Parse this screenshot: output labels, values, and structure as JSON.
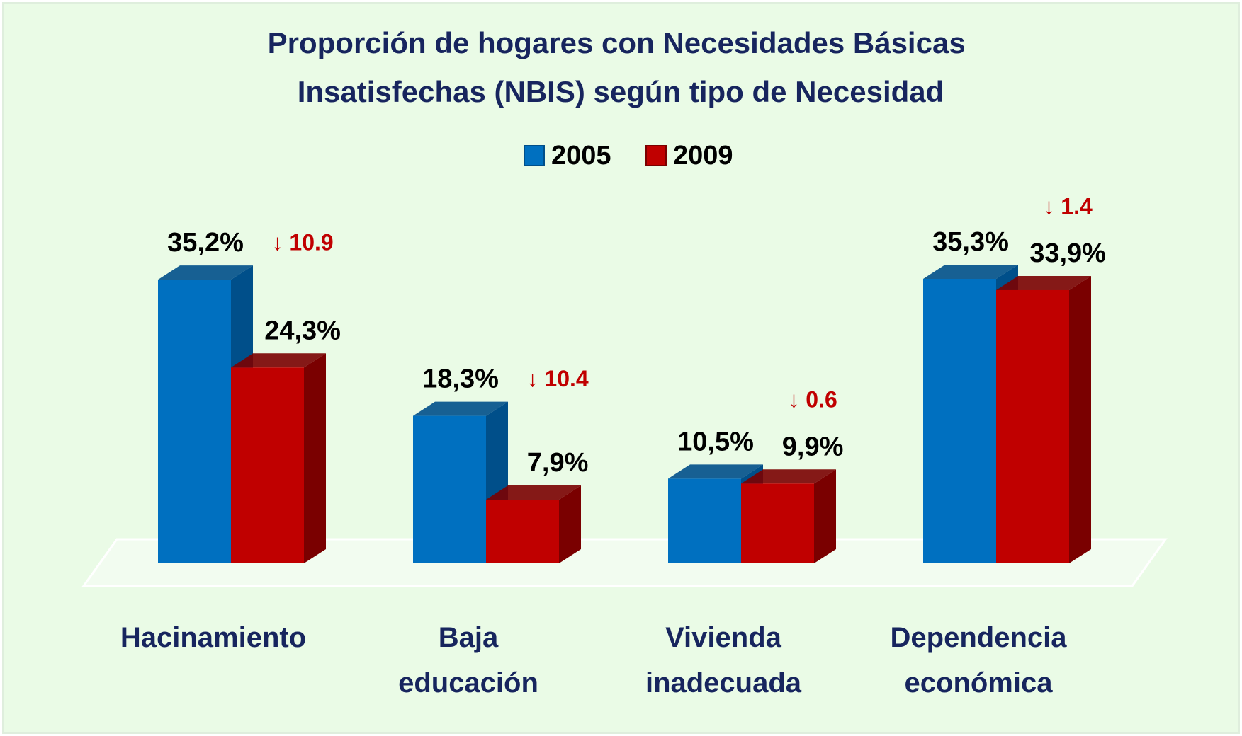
{
  "chart_data": {
    "type": "bar3d",
    "title": "Proporción de hogares con Necesidades Básicas Insatisfechas (NBIS) según tipo de Necesidad",
    "categories": [
      "Hacinamiento",
      "Baja\neducación",
      "Vivienda\ninadecuada",
      "Dependencia\neconómica"
    ],
    "series": [
      {
        "name": "2005",
        "color": "#0070c0",
        "side": "#004f8a",
        "values": [
          35.2,
          18.3,
          10.5,
          35.3
        ],
        "value_labels": [
          "35,2%",
          "18,3%",
          "10,5%",
          "35,3%"
        ]
      },
      {
        "name": "2009",
        "color": "#c00000",
        "side": "#7a0000",
        "values": [
          24.3,
          7.9,
          9.9,
          33.9
        ],
        "value_labels": [
          "24,3%",
          "7,9%",
          "9,9%",
          "33,9%"
        ]
      }
    ],
    "annotations": [
      "↓ 10.9",
      "↓ 10.4",
      "↓ 0.6",
      "↓ 1.4"
    ],
    "legend": "top"
  }
}
